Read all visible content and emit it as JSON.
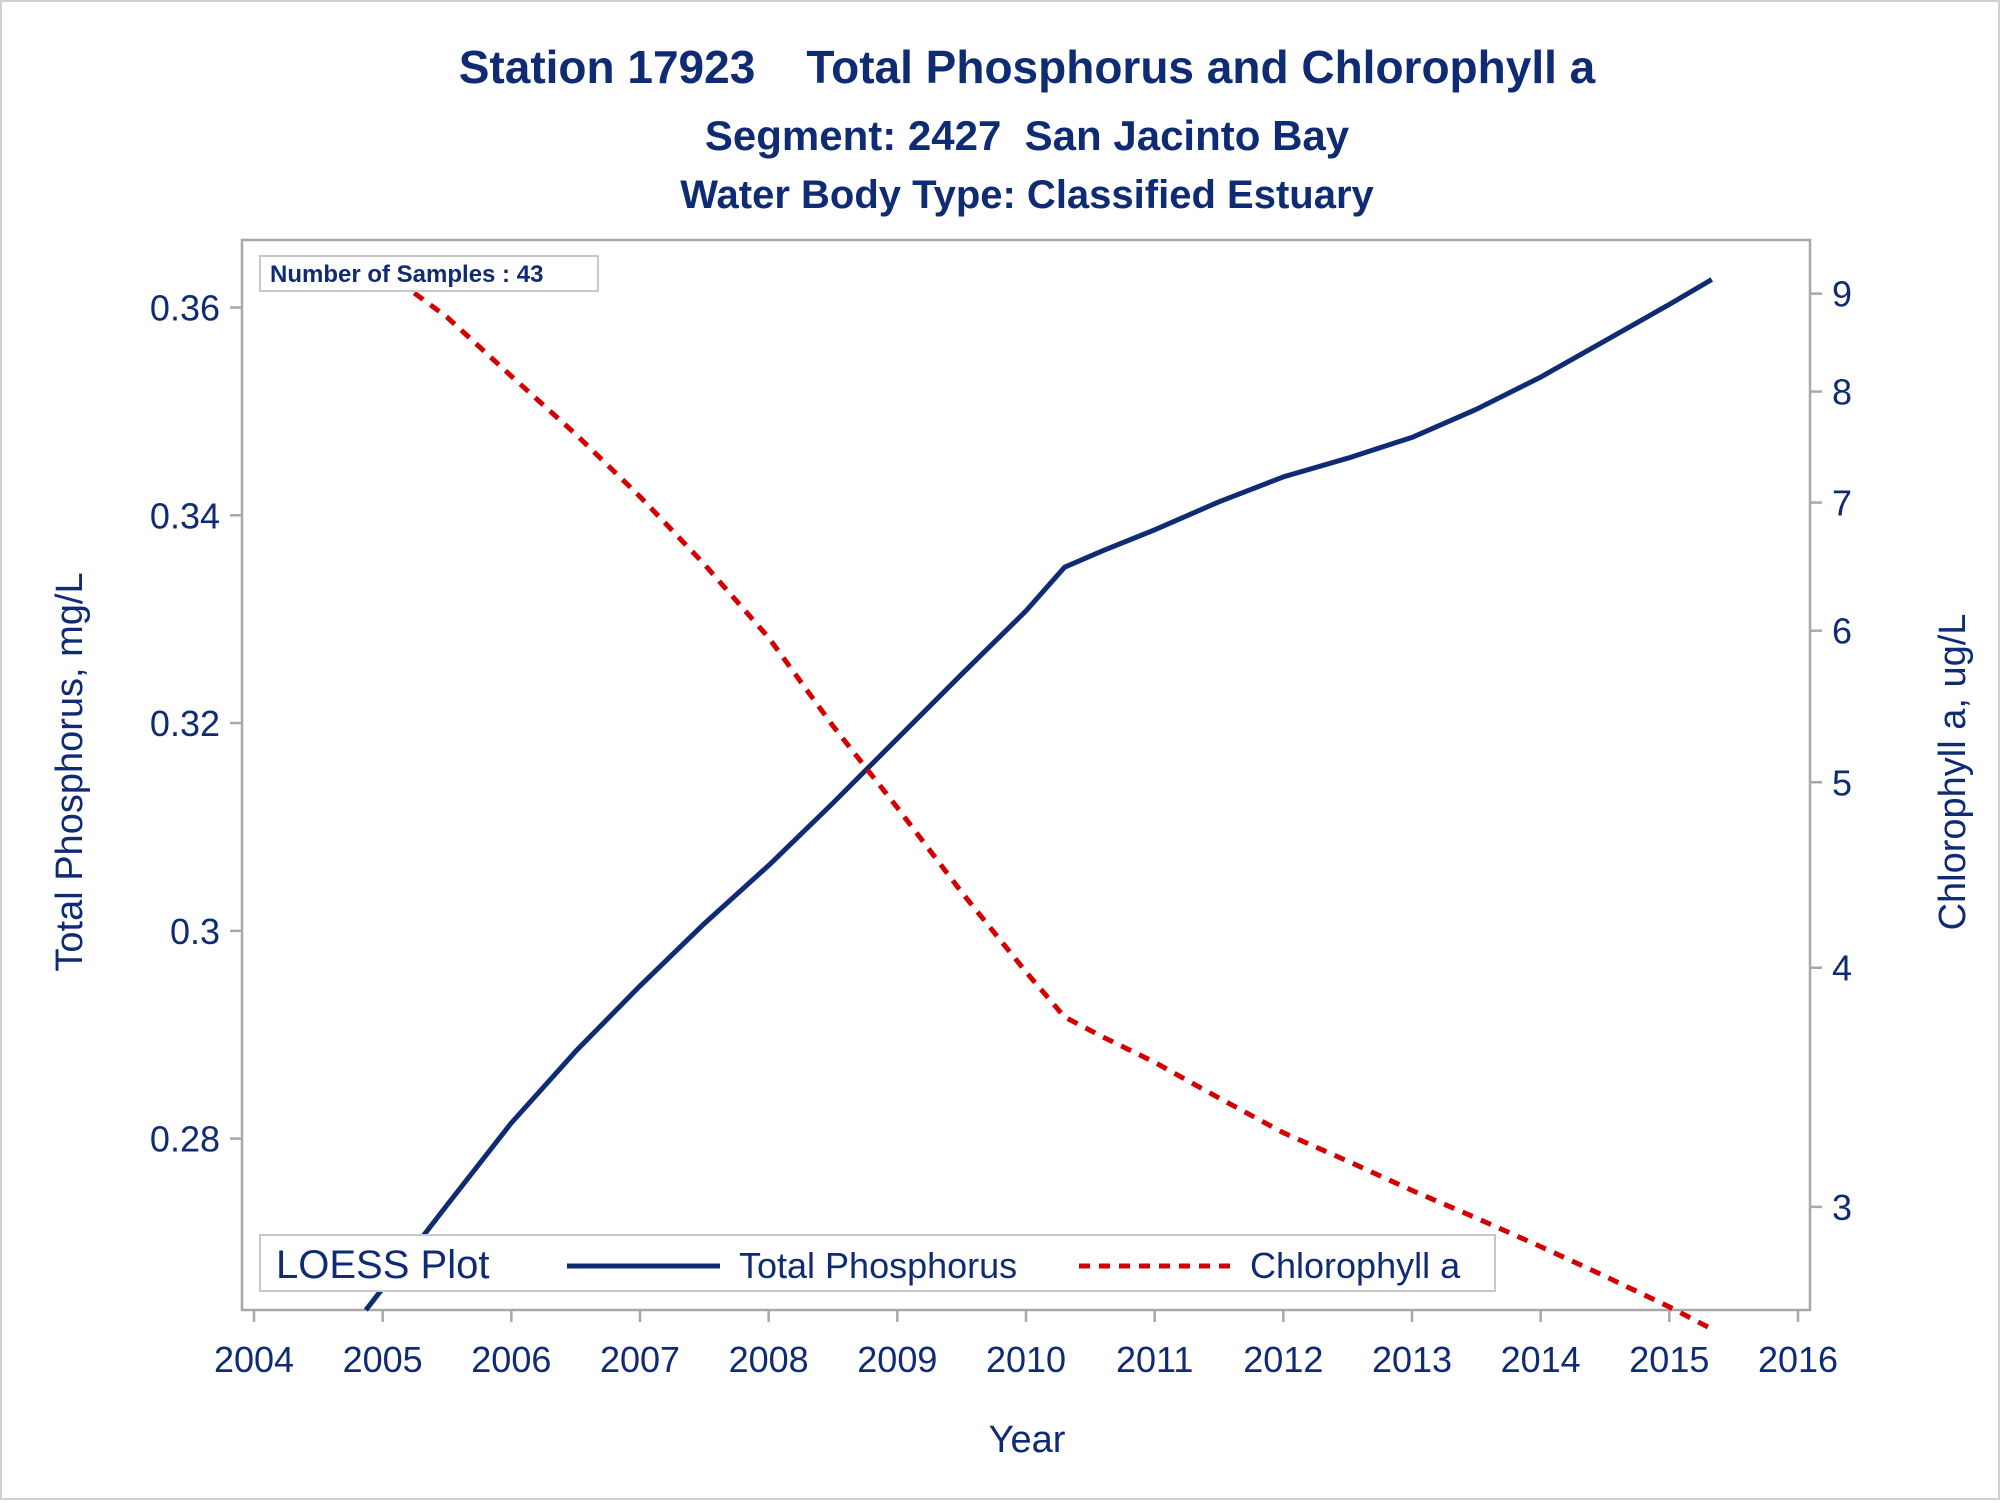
{
  "titles": {
    "line1": "Station 17923    Total Phosphorus and Chlorophyll a",
    "line2": "Segment: 2427  San Jacinto Bay",
    "line3": "Water Body Type: Classified Estuary"
  },
  "annotation": "Number of Samples : 43",
  "legend": {
    "title": "LOESS Plot",
    "items": [
      "Total Phosphorus",
      "Chlorophyll a"
    ],
    "placement": "bottom-inside"
  },
  "colors": {
    "text": "#0f2b73",
    "phosphorus": "#0f2b73",
    "chlorophyll": "#d40000",
    "frame": "#a8a8a8"
  },
  "chart_data": {
    "type": "line",
    "xlabel": "Year",
    "ylabel": "Total Phosphorus, mg/L",
    "y2label": "Chlorophyll a, ug/L",
    "xlim": [
      2004,
      2016
    ],
    "xticks": [
      "2004",
      "2005",
      "2006",
      "2007",
      "2008",
      "2009",
      "2010",
      "2011",
      "2012",
      "2013",
      "2014",
      "2015",
      "2016"
    ],
    "ylim": [
      0.2635,
      0.3665
    ],
    "yticks": [
      "0.28",
      "0.3",
      "0.32",
      "0.34",
      "0.36"
    ],
    "y2scale": "log",
    "y2lim": [
      2.65,
      9.6
    ],
    "y2ticks": [
      "3",
      "4",
      "5",
      "6",
      "7",
      "8",
      "9"
    ],
    "grid": false,
    "series": [
      {
        "name": "Total Phosphorus",
        "axis": "left",
        "style": "solid",
        "x": [
          2004.87,
          2005.5,
          2006.0,
          2006.5,
          2007.0,
          2007.5,
          2008.0,
          2008.5,
          2009.0,
          2009.5,
          2010.0,
          2010.3,
          2010.6,
          2011.0,
          2011.5,
          2012.0,
          2012.5,
          2013.0,
          2013.5,
          2014.0,
          2014.5,
          2015.0,
          2015.33
        ],
        "y": [
          0.2635,
          0.2736,
          0.2815,
          0.2884,
          0.2947,
          0.3007,
          0.3063,
          0.3123,
          0.3185,
          0.3247,
          0.3308,
          0.335,
          0.3366,
          0.3386,
          0.3413,
          0.3437,
          0.3455,
          0.3475,
          0.3502,
          0.3533,
          0.3568,
          0.3603,
          0.3627
        ]
      },
      {
        "name": "Chlorophyll a",
        "axis": "right",
        "style": "dashed",
        "x": [
          2004.87,
          2005.5,
          2006.0,
          2006.5,
          2007.0,
          2007.5,
          2008.0,
          2008.5,
          2009.0,
          2009.5,
          2010.0,
          2010.3,
          2010.6,
          2011.0,
          2011.5,
          2012.0,
          2012.5,
          2013.0,
          2013.5,
          2014.0,
          2014.5,
          2015.0,
          2015.33
        ],
        "y": [
          9.4,
          8.75,
          8.15,
          7.6,
          7.05,
          6.5,
          5.95,
          5.35,
          4.85,
          4.38,
          3.98,
          3.77,
          3.68,
          3.57,
          3.42,
          3.28,
          3.17,
          3.06,
          2.96,
          2.86,
          2.76,
          2.66,
          2.59
        ]
      }
    ]
  }
}
